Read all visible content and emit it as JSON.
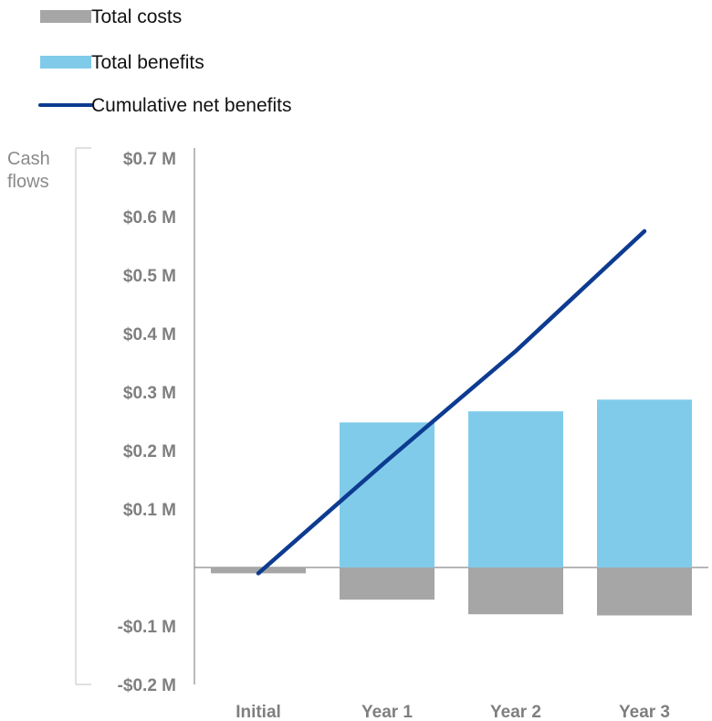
{
  "chart_data": {
    "type": "bar",
    "title": "",
    "xlabel": "",
    "ylabel": "Cash flows",
    "ylabel_lines": [
      "Cash",
      "flows"
    ],
    "categories": [
      "Initial",
      "Year 1",
      "Year 2",
      "Year 3"
    ],
    "ylim": [
      -0.2,
      0.7
    ],
    "yticks": [
      0.7,
      0.6,
      0.5,
      0.4,
      0.3,
      0.2,
      0.1,
      -0.1,
      -0.2
    ],
    "ytick_labels": [
      "$0.7 M",
      "$0.6 M",
      "$0.5 M",
      "$0.4 M",
      "$0.3 M",
      "$0.2 M",
      "$0.1 M",
      "-$0.1 M",
      "-$0.2 M"
    ],
    "grid": false,
    "legend_position": "top-left",
    "series": [
      {
        "name": "Total costs",
        "type": "bar",
        "color": "#a6a6a6",
        "values": [
          -0.01,
          -0.055,
          -0.08,
          -0.082
        ]
      },
      {
        "name": "Total benefits",
        "type": "bar",
        "color": "#80cbea",
        "values": [
          0,
          0.248,
          0.267,
          0.287
        ]
      },
      {
        "name": "Cumulative net benefits",
        "type": "line",
        "color": "#0d3b91",
        "values": [
          -0.01,
          0.183,
          0.37,
          0.575
        ]
      }
    ]
  }
}
